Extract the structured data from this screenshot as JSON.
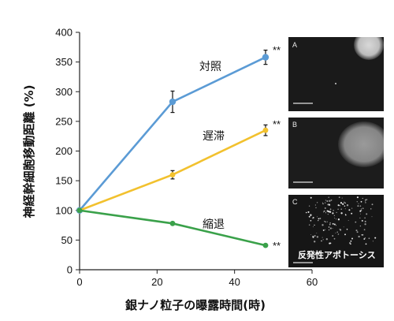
{
  "chart_data": {
    "type": "line",
    "xlabel": "銀ナノ粒子の曝露時間(時)",
    "ylabel": "神経幹細胞移動距離 (%)",
    "xlim": [
      0,
      60
    ],
    "ylim": [
      0,
      400
    ],
    "xticks": [
      0,
      20,
      40,
      60
    ],
    "yticks": [
      0,
      50,
      100,
      150,
      200,
      250,
      300,
      350,
      400
    ],
    "grid": false,
    "series": [
      {
        "name": "対照",
        "color": "#5b9bd5",
        "x": [
          0,
          24,
          48
        ],
        "y": [
          100,
          283,
          358
        ],
        "err": [
          0,
          18,
          12
        ]
      },
      {
        "name": "遅滞",
        "color": "#f2c12e",
        "x": [
          0,
          24,
          48
        ],
        "y": [
          100,
          160,
          235
        ],
        "err": [
          0,
          7,
          9
        ]
      },
      {
        "name": "縮退",
        "color": "#3aa14a",
        "x": [
          0,
          24,
          48
        ],
        "y": [
          100,
          78,
          41
        ],
        "err": [
          0,
          0,
          0
        ]
      }
    ],
    "significance_marker": "**"
  },
  "panels": [
    {
      "letter": "A",
      "caption": ""
    },
    {
      "letter": "B",
      "caption": ""
    },
    {
      "letter": "C",
      "caption": "反発性アポトーシス"
    }
  ]
}
